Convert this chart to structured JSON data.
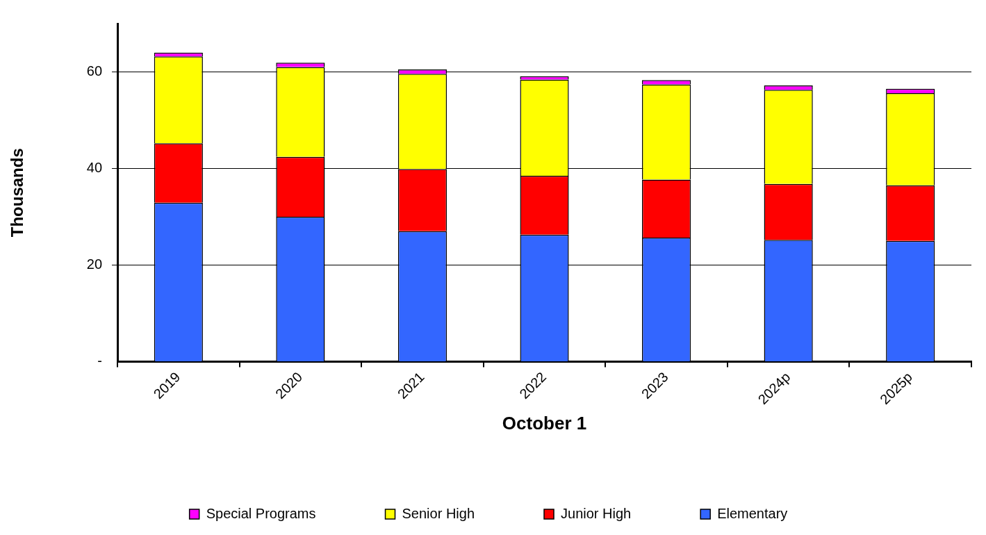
{
  "chart_data": {
    "type": "bar",
    "stacked": true,
    "xlabel": "October 1",
    "ylabel": "Thousands",
    "categories": [
      "2019",
      "2020",
      "2021",
      "2022",
      "2023",
      "2024p",
      "2025p"
    ],
    "series": [
      {
        "name": "Elementary",
        "color": "#3366ff",
        "values": [
          32.9,
          30.0,
          27.0,
          26.3,
          25.7,
          25.2,
          25.0
        ]
      },
      {
        "name": "Junior High",
        "color": "#ff0000",
        "values": [
          12.3,
          12.4,
          12.9,
          12.2,
          12.0,
          11.6,
          11.5
        ]
      },
      {
        "name": "Senior High",
        "color": "#ffff00",
        "values": [
          18.0,
          18.6,
          19.7,
          19.9,
          19.7,
          19.5,
          19.1
        ]
      },
      {
        "name": "Special Programs",
        "color": "#ff00ff",
        "values": [
          0.8,
          0.9,
          0.9,
          0.7,
          0.9,
          0.9,
          0.9
        ]
      }
    ],
    "ylim": [
      0,
      70
    ],
    "yticks": [
      {
        "value": 0,
        "label": "-"
      },
      20,
      40,
      60
    ],
    "grid": "y",
    "legend": "bottom"
  }
}
